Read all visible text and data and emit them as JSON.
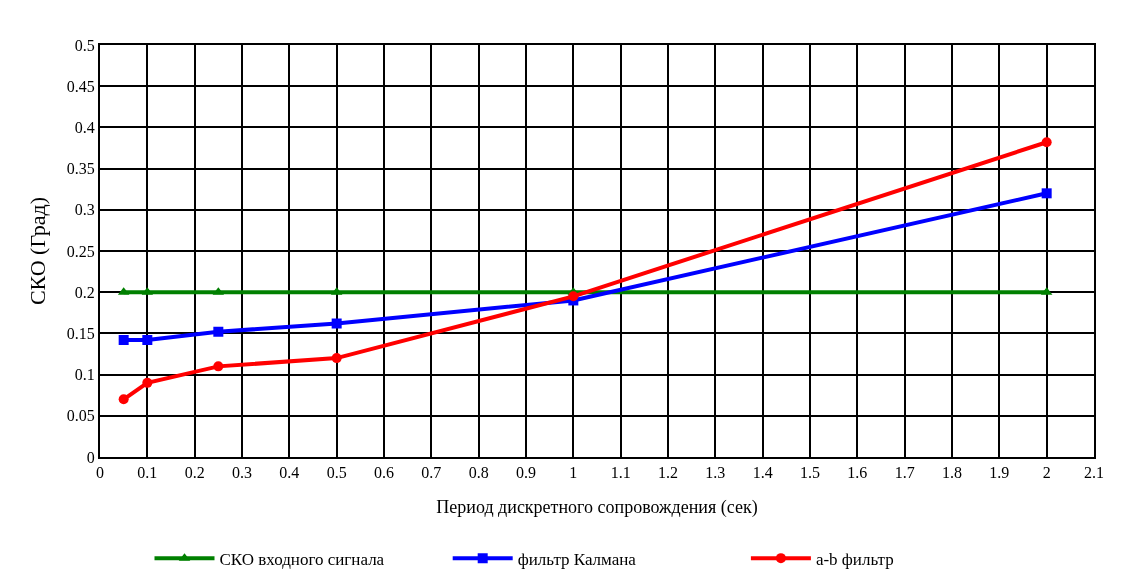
{
  "chart_data": {
    "type": "line",
    "xlabel": "Период дискретного сопровождения (сек)",
    "ylabel": "СКО (Град)",
    "x": [
      0.05,
      0.1,
      0.25,
      0.5,
      1,
      2
    ],
    "series": [
      {
        "name": "СКО входного сигнала",
        "color": "#008000",
        "marker": "triangle",
        "values": [
          0.2,
          0.2,
          0.2,
          0.2,
          0.2,
          0.2
        ]
      },
      {
        "name": "фильтр Калмана",
        "color": "#0000ff",
        "marker": "square",
        "values": [
          0.142,
          0.142,
          0.152,
          0.162,
          0.19,
          0.32
        ]
      },
      {
        "name": "a-b фильтр",
        "color": "#ff0000",
        "marker": "circle",
        "values": [
          0.07,
          0.09,
          0.11,
          0.12,
          0.195,
          0.382
        ]
      }
    ],
    "xlim": [
      0,
      2.1
    ],
    "xticks": [
      0,
      0.1,
      0.2,
      0.3,
      0.4,
      0.5,
      0.6,
      0.7,
      0.8,
      0.9,
      1,
      1.1,
      1.2,
      1.3,
      1.4,
      1.5,
      1.6,
      1.7,
      1.8,
      1.9,
      2,
      2.1
    ],
    "ylim": [
      0,
      0.5
    ],
    "yticks": [
      0,
      0.05,
      0.1,
      0.15,
      0.2,
      0.25,
      0.3,
      0.35,
      0.4,
      0.45,
      0.5
    ],
    "grid": true,
    "legend": "bottom",
    "line_style": "solid"
  }
}
